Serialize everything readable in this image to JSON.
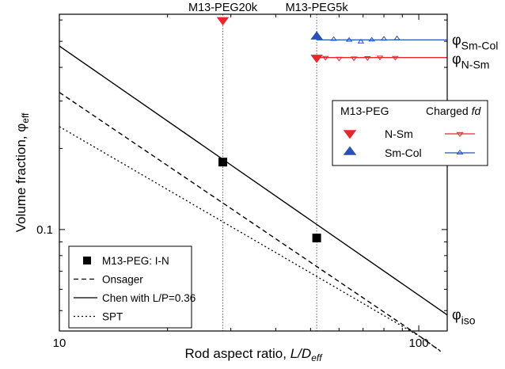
{
  "chart_data": {
    "type": "line",
    "xscale": "log",
    "yscale": "log",
    "xlim": [
      10,
      120
    ],
    "ylim": [
      0.042,
      0.63
    ],
    "xlabel_prefix": "Rod aspect ratio, ",
    "xlabel_var": "L/D",
    "xlabel_sub": "eff",
    "ylabel_main": "Volume fraction, φ",
    "ylabel_sub": "eff",
    "x_ticks": [
      {
        "value": 10,
        "label": "10"
      },
      {
        "value": 100,
        "label": "100"
      }
    ],
    "y_ticks": [
      {
        "value": 0.1,
        "label": "0.1"
      }
    ],
    "vlines": [
      {
        "x": 28.5,
        "label": "M13-PEG20k"
      },
      {
        "x": 52,
        "label": "M13-PEG5k"
      }
    ],
    "series": [
      {
        "name": "Onsager",
        "style": "dashed",
        "color": "#000000",
        "x": [
          10,
          100,
          115
        ],
        "y": [
          0.323,
          0.0404,
          0.0353
        ]
      },
      {
        "name": "Chen with L/P=0.36",
        "style": "solid",
        "color": "#000000",
        "x": [
          10,
          120
        ],
        "y": [
          0.48,
          0.0482
        ]
      },
      {
        "name": "SPT",
        "style": "dotted",
        "color": "#000000",
        "x": [
          10,
          100,
          115
        ],
        "y": [
          0.241,
          0.0403,
          0.0354
        ]
      },
      {
        "name": "M13-PEG: I-N",
        "style": "marker-square",
        "color": "#000000",
        "x": [
          28.5,
          52
        ],
        "y": [
          0.178,
          0.093
        ]
      }
    ],
    "phase_points": [
      {
        "name": "N-Sm",
        "marker": "triangle-down",
        "color": "#e8272d",
        "x": [
          28.5,
          52
        ],
        "y": [
          0.6,
          0.435
        ]
      },
      {
        "name": "Sm-Col",
        "marker": "triangle-up",
        "color": "#2a4fb8",
        "x": [
          52
        ],
        "y": [
          0.52
        ]
      }
    ],
    "charged_fd": [
      {
        "name": "N-Sm",
        "marker": "open-triangle-down",
        "color": "#e8272d",
        "line_y": 0.435,
        "x_range": [
          52,
          120
        ],
        "x": [
          55,
          60,
          66,
          72,
          78,
          86
        ],
        "y": [
          0.435,
          0.432,
          0.433,
          0.434,
          0.436,
          0.435
        ]
      },
      {
        "name": "Sm-Col",
        "marker": "open-triangle-up",
        "color": "#2a4fb8",
        "line_y": 0.506,
        "x_range": [
          52,
          120
        ],
        "x": [
          58,
          64,
          69,
          74,
          80,
          87
        ],
        "y": [
          0.509,
          0.505,
          0.498,
          0.506,
          0.51,
          0.512
        ]
      }
    ],
    "right_labels": [
      {
        "y": 0.506,
        "sym": "φ",
        "sub": "Sm-Col"
      },
      {
        "y": 0.43,
        "sym": "φ",
        "sub": "N-Sm"
      },
      {
        "y": 0.0482,
        "sym": "φ",
        "sub": "iso"
      }
    ],
    "legend_top": {
      "position": "right",
      "header_left": "M13-PEG",
      "header_right_prefix": "Charged ",
      "header_right_italic": "fd",
      "rows": [
        {
          "label": "N-Sm",
          "color": "#e8272d",
          "filled": "down",
          "open": "down"
        },
        {
          "label": "Sm-Col",
          "color": "#2a4fb8",
          "filled": "up",
          "open": "up"
        }
      ]
    },
    "legend_bottom": {
      "position": "bottom-left",
      "rows": [
        {
          "label": "M13-PEG: I-N",
          "kind": "square"
        },
        {
          "label": "Onsager",
          "kind": "dashed"
        },
        {
          "label": "Chen with L/P=0.36",
          "kind": "solid"
        },
        {
          "label": "SPT",
          "kind": "dotted"
        }
      ]
    },
    "grid": false
  }
}
